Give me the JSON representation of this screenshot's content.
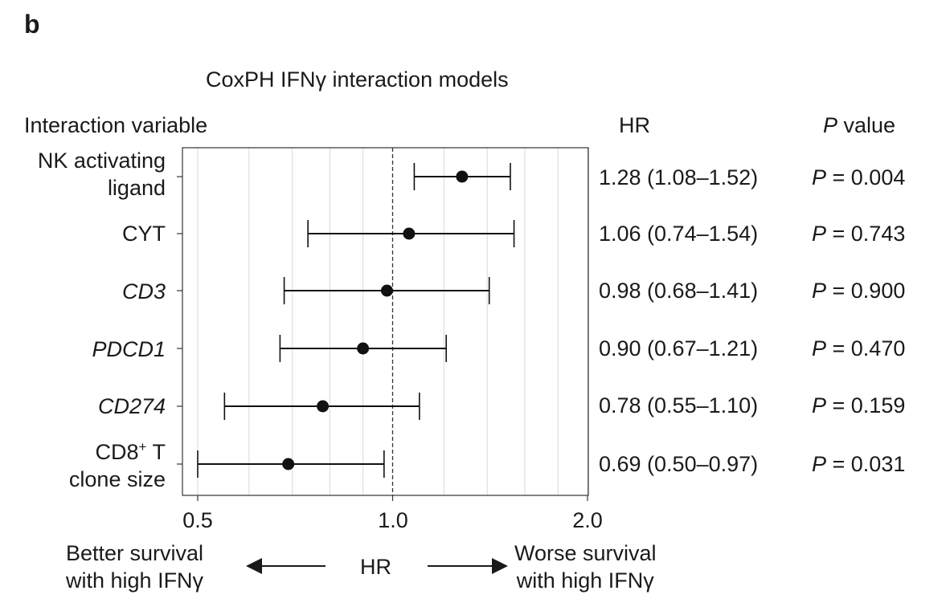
{
  "panel_label": "b",
  "title": "CoxPH IFNγ interaction models",
  "headers": {
    "variable": "Interaction variable",
    "hr": "HR",
    "p_italic": "P",
    "p_rest": " value"
  },
  "rows": [
    {
      "label_line1": "NK activating",
      "label_line2": "ligand",
      "italic": false,
      "hr_text": "1.28 (1.08–1.52)",
      "p_letter": "P",
      "p_text": " = 0.004"
    },
    {
      "label_line1": "CYT",
      "label_line2": "",
      "italic": false,
      "hr_text": "1.06 (0.74–1.54)",
      "p_letter": "P",
      "p_text": " = 0.743"
    },
    {
      "label_line1": "CD3",
      "label_line2": "",
      "italic": true,
      "hr_text": "0.98 (0.68–1.41)",
      "p_letter": "P",
      "p_text": " = 0.900"
    },
    {
      "label_line1": "PDCD1",
      "label_line2": "",
      "italic": true,
      "hr_text": "0.90 (0.67–1.21)",
      "p_letter": "P",
      "p_text": " = 0.470"
    },
    {
      "label_line1": "CD274",
      "label_line2": "",
      "italic": true,
      "hr_text": "0.78 (0.55–1.10)",
      "p_letter": "P",
      "p_text": " = 0.159"
    },
    {
      "label_line1": "CD8",
      "label_sup": "+",
      "label_line1_rest": " T",
      "label_line2": "clone size",
      "italic": false,
      "hr_text": "0.69 (0.50–0.97)",
      "p_letter": "P",
      "p_text": " = 0.031"
    }
  ],
  "x_ticks": [
    "0.5",
    "1.0",
    "2.0"
  ],
  "footer": {
    "left_line1": "Better survival",
    "left_line2": "with high IFNγ",
    "center": "HR",
    "right_line1": "Worse survival",
    "right_line2": "with high IFNγ"
  },
  "chart_data": {
    "type": "forest",
    "x_scale": "log2",
    "xlim": [
      0.48,
      2.0
    ],
    "x_ticks": [
      0.5,
      1.0,
      2.0
    ],
    "reference_line": 1.0,
    "grid": true,
    "series": [
      {
        "label": "NK activating ligand",
        "hr": 1.28,
        "lower": 1.08,
        "upper": 1.52,
        "p": 0.004
      },
      {
        "label": "CYT",
        "hr": 1.06,
        "lower": 0.74,
        "upper": 1.54,
        "p": 0.743
      },
      {
        "label": "CD3",
        "hr": 0.98,
        "lower": 0.68,
        "upper": 1.41,
        "p": 0.9
      },
      {
        "label": "PDCD1",
        "hr": 0.9,
        "lower": 0.67,
        "upper": 1.21,
        "p": 0.47
      },
      {
        "label": "CD274",
        "hr": 0.78,
        "lower": 0.55,
        "upper": 1.1,
        "p": 0.159
      },
      {
        "label": "CD8+ T clone size",
        "hr": 0.69,
        "lower": 0.5,
        "upper": 0.97,
        "p": 0.031
      }
    ]
  }
}
